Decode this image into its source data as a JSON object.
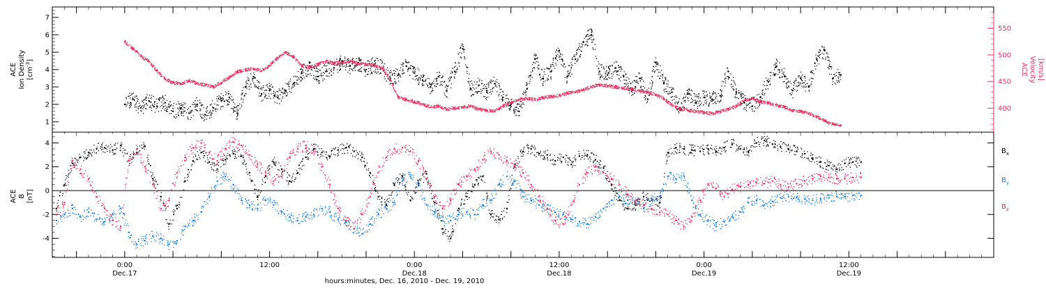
{
  "chart_data": [
    {
      "type": "scatter",
      "panel": "top",
      "ylabel_lines": [
        "ACE",
        "Ion Density"
      ],
      "ylabel_unit": "[cm",
      "ylabel_unit_sup": "-3",
      "ylabel_unit_tail": "]",
      "ylim": [
        0.4,
        7.6
      ],
      "yticks": [
        1,
        2,
        3,
        4,
        5,
        6,
        7
      ],
      "y2label_lines": [
        "ACE",
        "Velocity"
      ],
      "y2label_unit": "[km/s]",
      "y2lim": [
        355,
        590
      ],
      "y2ticks": [
        400,
        450,
        500,
        550
      ],
      "series": [
        {
          "name": "",
          "axis": "left",
          "color": "#000000",
          "x": [
            0,
            2,
            4,
            6,
            8,
            10,
            12,
            14,
            16,
            18,
            20,
            22,
            24,
            26,
            28,
            30,
            32,
            34,
            36,
            38,
            40,
            42,
            44,
            46,
            48,
            50,
            52,
            54,
            56,
            58,
            60,
            62,
            64,
            66,
            68,
            70,
            72,
            74,
            76,
            78,
            80,
            82,
            84,
            86,
            88,
            90,
            92,
            94,
            96,
            98,
            100,
            102,
            104,
            106,
            108,
            110,
            112,
            114,
            116,
            118,
            120,
            122,
            124,
            126,
            128,
            130,
            132,
            134,
            136,
            138,
            140,
            142,
            144,
            146,
            148,
            150,
            152,
            154,
            156,
            158,
            160,
            162,
            164,
            166,
            168,
            170,
            172,
            174,
            176,
            178
          ],
          "y": [
            2.0,
            2.3,
            1.8,
            2.2,
            1.9,
            2.1,
            1.6,
            1.8,
            1.5,
            2.0,
            1.4,
            1.8,
            2.2,
            2.4,
            1.5,
            3.0,
            3.6,
            2.6,
            2.8,
            2.4,
            2.8,
            3.2,
            3.8,
            4.2,
            3.6,
            3.9,
            4.1,
            4.5,
            4.2,
            4.4,
            4.0,
            4.3,
            4.1,
            3.5,
            3.7,
            4.2,
            3.8,
            3.4,
            3.0,
            3.6,
            2.8,
            3.9,
            5.2,
            2.9,
            3.1,
            2.7,
            3.2,
            2.4,
            2.0,
            1.6,
            2.9,
            4.6,
            3.5,
            3.9,
            5.1,
            3.6,
            4.6,
            5.6,
            6.0,
            3.9,
            3.7,
            4.1,
            3.6,
            2.8,
            3.5,
            2.3,
            4.4,
            3.2,
            2.7,
            1.8,
            2.6,
            2.1,
            2.4,
            2.3,
            2.5,
            3.9,
            2.7,
            2.1,
            1.9,
            2.4,
            3.3,
            4.2,
            3.6,
            2.8,
            3.5,
            3.0,
            4.6,
            5.1,
            3.5,
            3.7
          ]
        },
        {
          "name": "",
          "axis": "right",
          "color": "#e8325f",
          "x": [
            0,
            2,
            4,
            6,
            8,
            10,
            12,
            14,
            16,
            18,
            20,
            22,
            24,
            26,
            28,
            30,
            32,
            34,
            36,
            38,
            40,
            42,
            44,
            46,
            48,
            50,
            52,
            54,
            56,
            58,
            60,
            62,
            64,
            66,
            68,
            70,
            72,
            74,
            76,
            78,
            80,
            82,
            84,
            86,
            88,
            90,
            92,
            94,
            96,
            98,
            100,
            102,
            104,
            106,
            108,
            110,
            112,
            114,
            116,
            118,
            120,
            122,
            124,
            126,
            128,
            130,
            132,
            134,
            136,
            138,
            140,
            142,
            144,
            146,
            148,
            150,
            152,
            154,
            156,
            158,
            160,
            162,
            164,
            166,
            168,
            170,
            172,
            174,
            176,
            178
          ],
          "y": [
            525,
            512,
            498,
            488,
            470,
            455,
            448,
            446,
            452,
            446,
            444,
            440,
            448,
            458,
            468,
            472,
            474,
            470,
            480,
            494,
            505,
            496,
            480,
            476,
            482,
            488,
            484,
            486,
            488,
            484,
            482,
            480,
            476,
            454,
            420,
            416,
            412,
            408,
            402,
            404,
            398,
            400,
            402,
            404,
            398,
            396,
            394,
            404,
            410,
            416,
            418,
            416,
            420,
            422,
            424,
            428,
            430,
            434,
            440,
            444,
            442,
            440,
            438,
            436,
            432,
            430,
            426,
            418,
            406,
            398,
            396,
            394,
            392,
            390,
            394,
            398,
            404,
            414,
            418,
            412,
            410,
            406,
            402,
            396,
            394,
            390,
            384,
            376,
            370,
            368
          ]
        }
      ]
    },
    {
      "type": "scatter",
      "panel": "bottom",
      "ylabel_lines": [
        "ACE",
        "B"
      ],
      "ylabel_unit": "[nT]",
      "ylim": [
        -5.6,
        4.9
      ],
      "yticks": [
        -4,
        -2,
        0,
        2,
        4
      ],
      "xlabel": "hours:minutes, Dec. 16, 2010 - Dec. 19, 2010",
      "xlim": [
        -18,
        216
      ],
      "xticks": [
        {
          "x": 0,
          "time": "0:00",
          "date": "Dec.17"
        },
        {
          "x": 36,
          "time": "12:00",
          "date": ""
        },
        {
          "x": 72,
          "time": "0:00",
          "date": "Dec.18"
        },
        {
          "x": 108,
          "time": "12:00",
          "date": "Dec.18"
        },
        {
          "x": 144,
          "time": "0:00",
          "date": "Dec.19"
        },
        {
          "x": 180,
          "time": "12:00",
          "date": "Dec.19"
        }
      ],
      "series": [
        {
          "name": "B",
          "name_sub": "x",
          "color": "#000000",
          "x": [
            -17,
            -15,
            -13,
            -11,
            -9,
            -7,
            -5,
            -3,
            -1,
            1,
            3,
            5,
            7,
            9,
            11,
            13,
            15,
            17,
            19,
            21,
            23,
            25,
            27,
            29,
            31,
            33,
            35,
            37,
            39,
            41,
            43,
            45,
            47,
            49,
            51,
            53,
            55,
            57,
            59,
            61,
            63,
            65,
            67,
            69,
            71,
            73,
            75,
            77,
            79,
            81,
            83,
            85,
            87,
            89,
            91,
            93,
            95,
            97,
            99,
            101,
            103,
            105,
            107,
            109,
            111,
            113,
            115,
            117,
            119,
            121,
            123,
            125,
            127,
            129,
            131,
            133,
            135,
            137,
            139,
            141,
            143,
            145,
            147,
            149,
            151,
            153,
            155,
            157,
            159,
            161,
            163,
            165,
            167,
            169,
            171,
            173,
            175,
            177,
            179,
            181,
            183
          ],
          "y": [
            -1.5,
            0.5,
            2.3,
            2.8,
            3.2,
            3.5,
            3.6,
            3.4,
            3.8,
            2.5,
            3.2,
            3.7,
            1.0,
            -0.5,
            -2.8,
            -1.5,
            0.8,
            2.5,
            3.2,
            2.4,
            1.8,
            2.6,
            3.1,
            2.9,
            1.5,
            -0.5,
            1.2,
            2.4,
            1.8,
            0.8,
            1.5,
            2.8,
            3.5,
            3.2,
            2.9,
            3.4,
            3.6,
            3.3,
            2.8,
            1.5,
            -0.5,
            -1.2,
            0.5,
            1.2,
            -0.8,
            0.6,
            1.4,
            -1.0,
            -3.2,
            -4.0,
            -1.5,
            -0.5,
            0.5,
            1.2,
            -2.0,
            -2.4,
            -1.5,
            2.2,
            3.3,
            3.5,
            3.1,
            3.0,
            2.5,
            2.8,
            2.2,
            2.9,
            3.0,
            2.6,
            1.9,
            0.5,
            -0.8,
            -1.5,
            -1.2,
            -0.5,
            -0.8,
            -1.0,
            3.2,
            3.6,
            3.5,
            3.4,
            3.3,
            3.5,
            3.3,
            3.6,
            3.9,
            3.5,
            3.3,
            4.0,
            4.2,
            3.9,
            3.7,
            3.5,
            3.3,
            3.1,
            2.7,
            2.4,
            2.1,
            1.8,
            2.3,
            2.4,
            2.4
          ]
        },
        {
          "name": "B",
          "name_sub": "y",
          "color": "#1f7fd6",
          "x": [
            -17,
            -15,
            -13,
            -11,
            -9,
            -7,
            -5,
            -3,
            -1,
            1,
            3,
            5,
            7,
            9,
            11,
            13,
            15,
            17,
            19,
            21,
            23,
            25,
            27,
            29,
            31,
            33,
            35,
            37,
            39,
            41,
            43,
            45,
            47,
            49,
            51,
            53,
            55,
            57,
            59,
            61,
            63,
            65,
            67,
            69,
            71,
            73,
            75,
            77,
            79,
            81,
            83,
            85,
            87,
            89,
            91,
            93,
            95,
            97,
            99,
            101,
            103,
            105,
            107,
            109,
            111,
            113,
            115,
            117,
            119,
            121,
            123,
            125,
            127,
            129,
            131,
            133,
            135,
            137,
            139,
            141,
            143,
            145,
            147,
            149,
            151,
            153,
            155,
            157,
            159,
            161,
            163,
            165,
            167,
            169,
            171,
            173,
            175,
            177,
            179,
            181,
            183
          ],
          "y": [
            -2.5,
            -2.0,
            -1.5,
            -2.2,
            -1.8,
            -2.4,
            -2.6,
            -2.0,
            -1.5,
            -3.5,
            -4.5,
            -4.2,
            -3.8,
            -4.0,
            -4.5,
            -4.2,
            -3.0,
            -2.5,
            -1.8,
            -0.5,
            0.8,
            1.2,
            0.5,
            -0.8,
            -1.2,
            -1.5,
            -0.8,
            -1.2,
            -1.8,
            -2.2,
            -2.5,
            -2.2,
            -2.0,
            -1.5,
            -1.8,
            -2.4,
            -2.6,
            -3.2,
            -3.6,
            -2.8,
            -2.0,
            -1.5,
            -1.0,
            0.8,
            1.2,
            0.4,
            -1.2,
            -1.8,
            -2.2,
            -2.5,
            -2.0,
            -1.8,
            -2.0,
            -1.2,
            -0.8,
            0.5,
            1.2,
            0.8,
            -0.5,
            -0.8,
            -1.2,
            -1.5,
            -1.8,
            -2.0,
            -2.4,
            -2.6,
            -2.8,
            -2.2,
            -1.5,
            -0.8,
            -0.5,
            -0.8,
            -1.0,
            -1.5,
            -0.8,
            -0.5,
            1.2,
            1.0,
            1.2,
            -0.8,
            -2.0,
            -2.5,
            -3.0,
            -2.6,
            -2.2,
            -1.8,
            -1.0,
            -0.8,
            -1.2,
            -0.9,
            -0.6,
            -0.5,
            -0.6,
            -0.7,
            -0.8,
            -0.7,
            -0.6,
            -0.5,
            -0.5,
            -0.4,
            -0.4
          ]
        },
        {
          "name": "B",
          "name_sub": "z",
          "color": "#e8325f",
          "x": [
            -17,
            -15,
            -13,
            -11,
            -9,
            -7,
            -5,
            -3,
            -1,
            1,
            3,
            5,
            7,
            9,
            11,
            13,
            15,
            17,
            19,
            21,
            23,
            25,
            27,
            29,
            31,
            33,
            35,
            37,
            39,
            41,
            43,
            45,
            47,
            49,
            51,
            53,
            55,
            57,
            59,
            61,
            63,
            65,
            67,
            69,
            71,
            73,
            75,
            77,
            79,
            81,
            83,
            85,
            87,
            89,
            91,
            93,
            95,
            97,
            99,
            101,
            103,
            105,
            107,
            109,
            111,
            113,
            115,
            117,
            119,
            121,
            123,
            125,
            127,
            129,
            131,
            133,
            135,
            137,
            139,
            141,
            143,
            145,
            147,
            149,
            151,
            153,
            155,
            157,
            159,
            161,
            163,
            165,
            167,
            169,
            171,
            173,
            175,
            177,
            179,
            181,
            183
          ],
          "y": [
            -2.0,
            -1.0,
            2.5,
            1.8,
            1.0,
            -0.5,
            -1.5,
            -2.5,
            -3.0,
            2.5,
            3.5,
            2.0,
            0.5,
            -1.5,
            -0.8,
            1.5,
            2.8,
            3.6,
            4.0,
            3.2,
            2.5,
            3.5,
            4.1,
            3.8,
            3.0,
            2.2,
            1.5,
            0.8,
            1.2,
            2.8,
            3.5,
            3.8,
            3.3,
            2.0,
            0.5,
            -1.5,
            -2.5,
            -3.2,
            -2.0,
            -0.5,
            1.5,
            2.8,
            3.5,
            3.6,
            3.3,
            2.5,
            1.0,
            -0.5,
            -1.5,
            -0.8,
            0.5,
            1.2,
            1.8,
            2.6,
            3.3,
            3.0,
            2.5,
            2.0,
            1.5,
            0.5,
            -0.5,
            -1.5,
            -2.5,
            -2.8,
            -1.2,
            0.5,
            1.5,
            2.0,
            1.5,
            1.0,
            0.5,
            -0.3,
            -0.8,
            -1.2,
            -1.5,
            -1.8,
            -2.0,
            -2.5,
            -3.0,
            -2.2,
            -0.8,
            0.5,
            0.2,
            -0.5,
            0.1,
            0.3,
            0.5,
            0.7,
            0.6,
            0.8,
            0.5,
            0.3,
            0.6,
            0.8,
            1.0,
            1.2,
            1.1,
            1.0,
            1.0,
            1.1,
            1.1
          ]
        }
      ]
    }
  ]
}
